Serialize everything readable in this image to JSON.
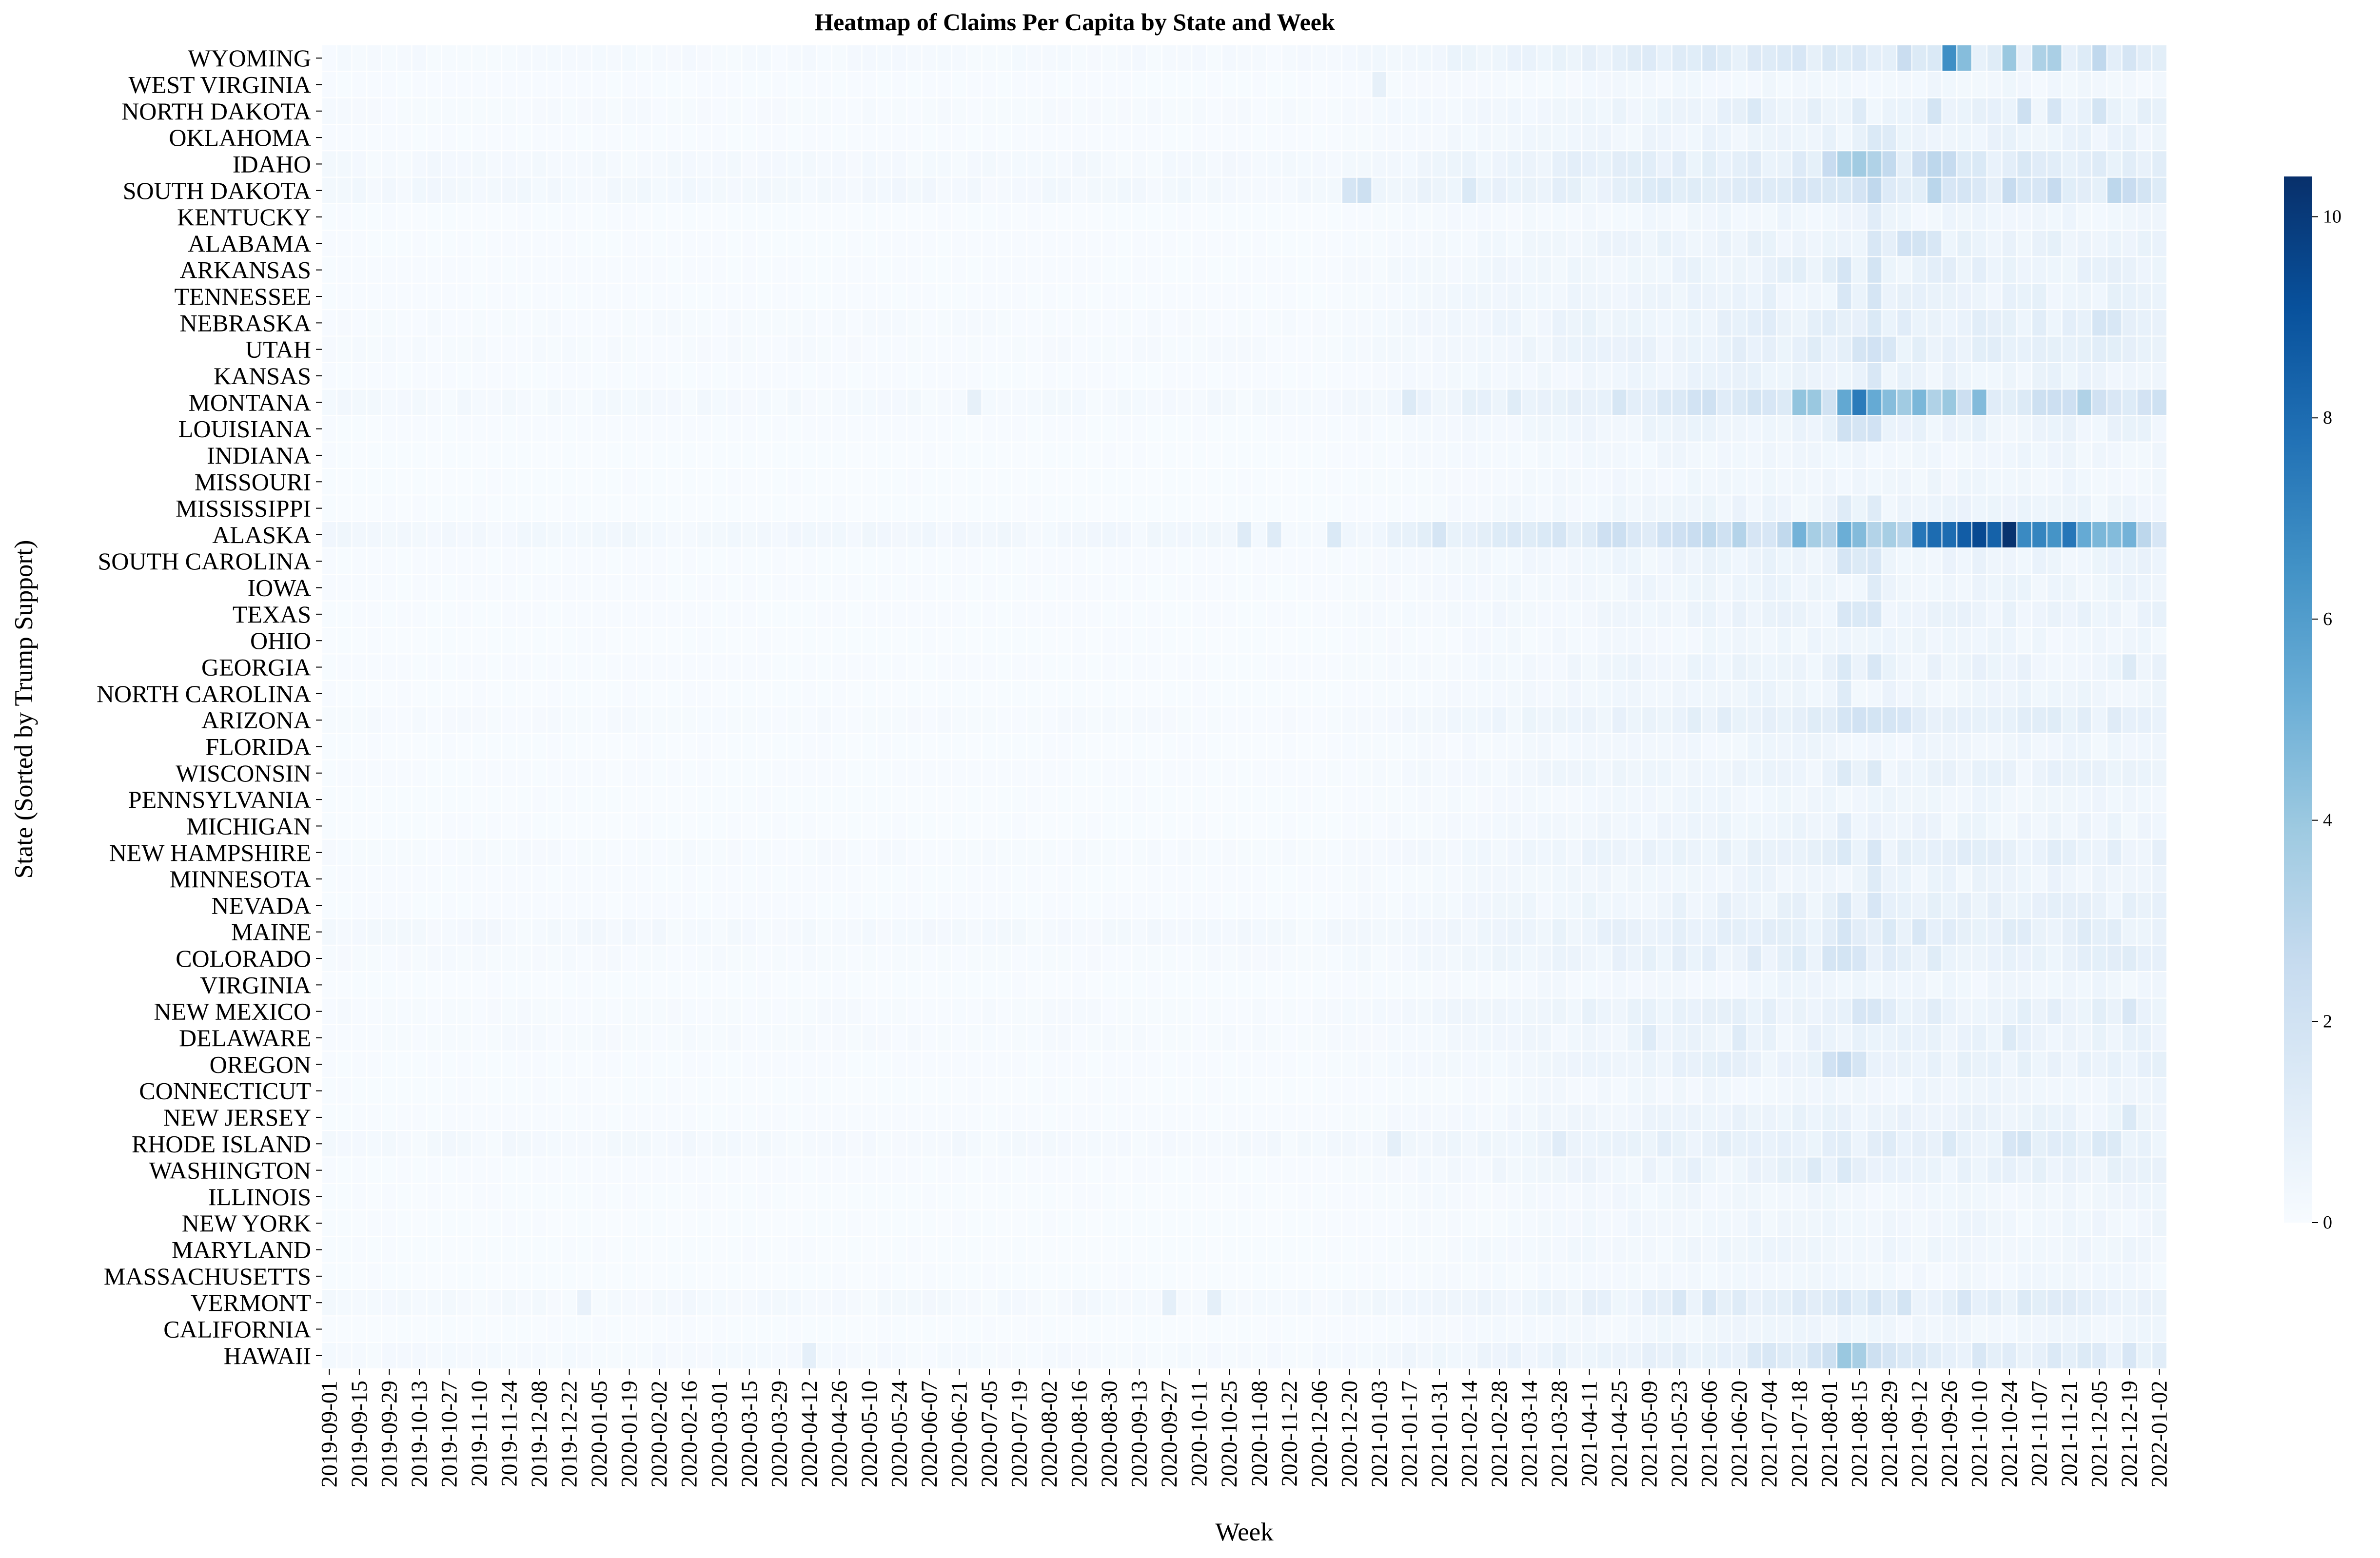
{
  "chart_data": {
    "type": "heatmap",
    "title": "Heatmap of Claims Per Capita by State and Week",
    "xlabel": "Week",
    "ylabel": "State (Sorted by Trump Support)",
    "colormap": "Blues",
    "colorbar": {
      "min": 0,
      "max": 10.4,
      "ticks": [
        0,
        2,
        4,
        6,
        8,
        10
      ]
    },
    "x_start_week": "2019-09-01",
    "x_tick_labels": [
      "2019-09-01",
      "2019-09-15",
      "2019-09-29",
      "2019-10-13",
      "2019-10-27",
      "2019-11-10",
      "2019-11-24",
      "2019-12-08",
      "2019-12-22",
      "2020-01-05",
      "2020-01-19",
      "2020-02-02",
      "2020-02-16",
      "2020-03-01",
      "2020-03-15",
      "2020-03-29",
      "2020-04-12",
      "2020-04-26",
      "2020-05-10",
      "2020-05-24",
      "2020-06-07",
      "2020-06-21",
      "2020-07-05",
      "2020-07-19",
      "2020-08-02",
      "2020-08-16",
      "2020-08-30",
      "2020-09-13",
      "2020-09-27",
      "2020-10-11",
      "2020-10-25",
      "2020-11-08",
      "2020-11-22",
      "2020-12-06",
      "2020-12-20",
      "2021-01-03",
      "2021-01-17",
      "2021-01-31",
      "2021-02-14",
      "2021-02-28",
      "2021-03-14",
      "2021-03-28",
      "2021-04-11",
      "2021-04-25",
      "2021-05-09",
      "2021-05-23",
      "2021-06-06",
      "2021-06-20",
      "2021-07-04",
      "2021-07-18",
      "2021-08-01",
      "2021-08-15",
      "2021-08-29",
      "2021-09-12",
      "2021-09-26",
      "2021-10-10",
      "2021-10-24",
      "2021-11-07",
      "2021-11-21",
      "2021-12-05",
      "2021-12-19",
      "2022-01-02"
    ],
    "states": [
      "WYOMING",
      "WEST VIRGINIA",
      "NORTH DAKOTA",
      "OKLAHOMA",
      "IDAHO",
      "SOUTH DAKOTA",
      "KENTUCKY",
      "ALABAMA",
      "ARKANSAS",
      "TENNESSEE",
      "NEBRASKA",
      "UTAH",
      "KANSAS",
      "MONTANA",
      "LOUISIANA",
      "INDIANA",
      "MISSOURI",
      "MISSISSIPPI",
      "ALASKA",
      "SOUTH CAROLINA",
      "IOWA",
      "TEXAS",
      "OHIO",
      "GEORGIA",
      "NORTH CAROLINA",
      "ARIZONA",
      "FLORIDA",
      "WISCONSIN",
      "PENNSYLVANIA",
      "MICHIGAN",
      "NEW HAMPSHIRE",
      "MINNESOTA",
      "NEVADA",
      "MAINE",
      "COLORADO",
      "VIRGINIA",
      "NEW MEXICO",
      "DELAWARE",
      "OREGON",
      "CONNECTICUT",
      "NEW JERSEY",
      "RHODE ISLAND",
      "WASHINGTON",
      "ILLINOIS",
      "NEW YORK",
      "MARYLAND",
      "MASSACHUSETTS",
      "VERMONT",
      "CALIFORNIA",
      "HAWAII"
    ],
    "profiles": {
      "WYOMING": {
        "base": 0.15,
        "late": 1.2,
        "peaks": [
          [
            105,
            2.4
          ],
          [
            108,
            6.6
          ],
          [
            109,
            4.5
          ],
          [
            112,
            4.0
          ],
          [
            114,
            3.4
          ],
          [
            115,
            3.5
          ],
          [
            118,
            2.8
          ]
        ]
      },
      "WEST VIRGINIA": {
        "base": 0.05,
        "late": 0.3,
        "peaks": [
          [
            70,
            0.9
          ]
        ]
      },
      "NORTH DAKOTA": {
        "base": 0.1,
        "late": 0.6,
        "peaks": [
          [
            95,
            1.5
          ],
          [
            99,
            1.0
          ],
          [
            102,
            1.3
          ],
          [
            107,
            1.9
          ],
          [
            113,
            2.2
          ],
          [
            115,
            1.8
          ],
          [
            118,
            1.9
          ],
          [
            121,
            1.0
          ]
        ]
      },
      "OKLAHOMA": {
        "base": 0.05,
        "late": 0.6,
        "peaks": [
          [
            103,
            1.5
          ],
          [
            104,
            1.3
          ]
        ]
      },
      "IDAHO": {
        "base": 0.2,
        "late": 1.1,
        "peaks": [
          [
            100,
            2.5
          ],
          [
            101,
            3.4
          ],
          [
            102,
            3.8
          ],
          [
            103,
            3.3
          ],
          [
            104,
            2.7
          ],
          [
            106,
            2.4
          ],
          [
            107,
            2.9
          ],
          [
            108,
            2.6
          ]
        ]
      },
      "SOUTH DAKOTA": {
        "base": 0.25,
        "late": 1.2,
        "peaks": [
          [
            68,
            1.8
          ],
          [
            69,
            2.2
          ],
          [
            76,
            1.5
          ],
          [
            103,
            2.8
          ],
          [
            107,
            3.0
          ],
          [
            112,
            2.6
          ],
          [
            115,
            2.6
          ],
          [
            119,
            2.9
          ],
          [
            120,
            2.5
          ]
        ]
      },
      "KENTUCKY": {
        "base": 0.03,
        "late": 0.4,
        "peaks": [
          [
            103,
            1.2
          ]
        ]
      },
      "ALABAMA": {
        "base": 0.05,
        "late": 0.7,
        "peaks": [
          [
            103,
            1.6
          ],
          [
            105,
            2.0
          ],
          [
            106,
            1.9
          ],
          [
            107,
            1.6
          ]
        ]
      },
      "ARKANSAS": {
        "base": 0.05,
        "late": 0.8,
        "peaks": [
          [
            101,
            1.8
          ],
          [
            103,
            1.9
          ]
        ]
      },
      "TENNESSEE": {
        "base": 0.05,
        "late": 0.7,
        "peaks": [
          [
            101,
            1.6
          ],
          [
            103,
            1.8
          ]
        ]
      },
      "NEBRASKA": {
        "base": 0.1,
        "late": 0.9,
        "peaks": [
          [
            118,
            1.8
          ],
          [
            119,
            1.6
          ],
          [
            103,
            1.5
          ]
        ]
      },
      "UTAH": {
        "base": 0.1,
        "late": 0.8,
        "peaks": [
          [
            102,
            1.8
          ],
          [
            103,
            2.0
          ],
          [
            104,
            1.6
          ]
        ]
      },
      "KANSAS": {
        "base": 0.05,
        "late": 0.6,
        "peaks": [
          [
            103,
            1.6
          ]
        ]
      },
      "MONTANA": {
        "base": 0.2,
        "late": 1.8,
        "peaks": [
          [
            43,
            0.9
          ],
          [
            72,
            1.4
          ],
          [
            98,
            4.2
          ],
          [
            99,
            4.0
          ],
          [
            101,
            5.5
          ],
          [
            102,
            7.4
          ],
          [
            103,
            5.4
          ],
          [
            104,
            4.5
          ],
          [
            105,
            3.8
          ],
          [
            106,
            4.8
          ],
          [
            107,
            3.3
          ],
          [
            108,
            4.0
          ],
          [
            110,
            4.6
          ],
          [
            117,
            3.3
          ]
        ]
      },
      "LOUISIANA": {
        "base": 0.05,
        "late": 0.6,
        "peaks": [
          [
            101,
            2.1
          ],
          [
            102,
            1.8
          ],
          [
            103,
            2.0
          ]
        ]
      },
      "INDIANA": {
        "base": 0.03,
        "late": 0.4,
        "peaks": []
      },
      "MISSOURI": {
        "base": 0.03,
        "late": 0.4,
        "peaks": []
      },
      "MISSISSIPPI": {
        "base": 0.03,
        "late": 0.5,
        "peaks": [
          [
            101,
            1.3
          ],
          [
            103,
            1.3
          ]
        ]
      },
      "ALASKA": {
        "base": 0.3,
        "late": 2.4,
        "peaks": [
          [
            61,
            1.3
          ],
          [
            63,
            1.3
          ],
          [
            67,
            1.5
          ],
          [
            74,
            1.8
          ],
          [
            84,
            1.3
          ],
          [
            98,
            5.0
          ],
          [
            99,
            3.6
          ],
          [
            100,
            3.2
          ],
          [
            101,
            5.2
          ],
          [
            102,
            4.6
          ],
          [
            104,
            3.6
          ],
          [
            106,
            7.6
          ],
          [
            107,
            8.0
          ],
          [
            108,
            8.0
          ],
          [
            109,
            8.6
          ],
          [
            110,
            9.4
          ],
          [
            111,
            8.4
          ],
          [
            112,
            10.3
          ],
          [
            113,
            6.8
          ],
          [
            114,
            7.0
          ],
          [
            115,
            6.4
          ],
          [
            116,
            7.6
          ],
          [
            117,
            5.4
          ],
          [
            118,
            4.8
          ],
          [
            119,
            4.6
          ],
          [
            120,
            5.0
          ]
        ]
      },
      "SOUTH CAROLINA": {
        "base": 0.05,
        "late": 0.6,
        "peaks": [
          [
            101,
            1.8
          ],
          [
            102,
            1.4
          ],
          [
            103,
            1.6
          ]
        ]
      },
      "IOWA": {
        "base": 0.05,
        "late": 0.5,
        "peaks": [
          [
            103,
            1.3
          ]
        ]
      },
      "TEXAS": {
        "base": 0.05,
        "late": 0.6,
        "peaks": [
          [
            101,
            1.6
          ],
          [
            102,
            1.5
          ],
          [
            103,
            1.6
          ]
        ]
      },
      "OHIO": {
        "base": 0.03,
        "late": 0.4,
        "peaks": []
      },
      "GEORGIA": {
        "base": 0.05,
        "late": 0.6,
        "peaks": [
          [
            101,
            1.5
          ],
          [
            103,
            1.6
          ],
          [
            120,
            1.4
          ]
        ]
      },
      "NORTH CAROLINA": {
        "base": 0.03,
        "late": 0.5,
        "peaks": [
          [
            101,
            1.3
          ]
        ]
      },
      "ARIZONA": {
        "base": 0.1,
        "late": 0.9,
        "peaks": [
          [
            101,
            1.8
          ],
          [
            102,
            2.0
          ],
          [
            103,
            1.9
          ],
          [
            104,
            1.8
          ],
          [
            105,
            1.7
          ]
        ]
      },
      "FLORIDA": {
        "base": 0.03,
        "late": 0.4,
        "peaks": []
      },
      "WISCONSIN": {
        "base": 0.05,
        "late": 0.6,
        "peaks": [
          [
            101,
            1.4
          ],
          [
            103,
            1.4
          ]
        ]
      },
      "PENNSYLVANIA": {
        "base": 0.03,
        "late": 0.4,
        "peaks": []
      },
      "MICHIGAN": {
        "base": 0.03,
        "late": 0.5,
        "peaks": [
          [
            101,
            1.2
          ]
        ]
      },
      "NEW HAMPSHIRE": {
        "base": 0.1,
        "late": 0.8,
        "peaks": [
          [
            101,
            1.5
          ],
          [
            103,
            1.6
          ]
        ]
      },
      "MINNESOTA": {
        "base": 0.05,
        "late": 0.5,
        "peaks": [
          [
            103,
            1.3
          ]
        ]
      },
      "NEVADA": {
        "base": 0.05,
        "late": 0.7,
        "peaks": [
          [
            101,
            1.6
          ],
          [
            103,
            1.7
          ]
        ]
      },
      "MAINE": {
        "base": 0.2,
        "late": 0.8,
        "peaks": [
          [
            101,
            1.8
          ],
          [
            104,
            1.5
          ],
          [
            106,
            1.6
          ]
        ]
      },
      "COLORADO": {
        "base": 0.1,
        "late": 0.9,
        "peaks": [
          [
            100,
            1.8
          ],
          [
            101,
            1.9
          ],
          [
            102,
            1.7
          ]
        ]
      },
      "VIRGINIA": {
        "base": 0.03,
        "late": 0.4,
        "peaks": []
      },
      "NEW MEXICO": {
        "base": 0.1,
        "late": 0.9,
        "peaks": [
          [
            102,
            1.7
          ],
          [
            103,
            1.6
          ],
          [
            120,
            1.6
          ]
        ]
      },
      "DELAWARE": {
        "base": 0.1,
        "late": 0.6,
        "peaks": [
          [
            88,
            1.3
          ],
          [
            94,
            1.3
          ],
          [
            112,
            1.4
          ]
        ]
      },
      "OREGON": {
        "base": 0.05,
        "late": 0.8,
        "peaks": [
          [
            100,
            2.0
          ],
          [
            101,
            2.6
          ],
          [
            102,
            1.8
          ]
        ]
      },
      "CONNECTICUT": {
        "base": 0.03,
        "late": 0.4,
        "peaks": []
      },
      "NEW JERSEY": {
        "base": 0.05,
        "late": 0.6,
        "peaks": [
          [
            120,
            1.5
          ]
        ]
      },
      "RHODE ISLAND": {
        "base": 0.2,
        "late": 0.8,
        "peaks": [
          [
            71,
            1.0
          ],
          [
            82,
            1.2
          ],
          [
            108,
            1.5
          ],
          [
            112,
            1.7
          ],
          [
            113,
            1.9
          ],
          [
            118,
            1.5
          ],
          [
            119,
            1.4
          ]
        ]
      },
      "WASHINGTON": {
        "base": 0.05,
        "late": 0.7,
        "peaks": [
          [
            99,
            1.4
          ],
          [
            101,
            1.5
          ]
        ]
      },
      "ILLINOIS": {
        "base": 0.03,
        "late": 0.4,
        "peaks": []
      },
      "NEW YORK": {
        "base": 0.03,
        "late": 0.4,
        "peaks": []
      },
      "MARYLAND": {
        "base": 0.03,
        "late": 0.4,
        "peaks": []
      },
      "MASSACHUSETTS": {
        "base": 0.03,
        "late": 0.3,
        "peaks": []
      },
      "VERMONT": {
        "base": 0.2,
        "late": 0.9,
        "peaks": [
          [
            17,
            0.8
          ],
          [
            56,
            1.0
          ],
          [
            59,
            1.0
          ],
          [
            90,
            1.6
          ],
          [
            92,
            1.6
          ],
          [
            94,
            1.3
          ],
          [
            101,
            1.8
          ],
          [
            103,
            1.8
          ],
          [
            105,
            1.9
          ],
          [
            109,
            1.7
          ]
        ]
      },
      "CALIFORNIA": {
        "base": 0.03,
        "late": 0.4,
        "peaks": []
      },
      "HAWAII": {
        "base": 0.15,
        "late": 1.0,
        "peaks": [
          [
            32,
            1.0
          ],
          [
            96,
            1.6
          ],
          [
            99,
            1.8
          ],
          [
            100,
            2.2
          ],
          [
            101,
            4.0
          ],
          [
            102,
            3.6
          ],
          [
            103,
            2.2
          ],
          [
            104,
            1.8
          ],
          [
            110,
            1.6
          ],
          [
            120,
            1.7
          ]
        ]
      }
    }
  }
}
